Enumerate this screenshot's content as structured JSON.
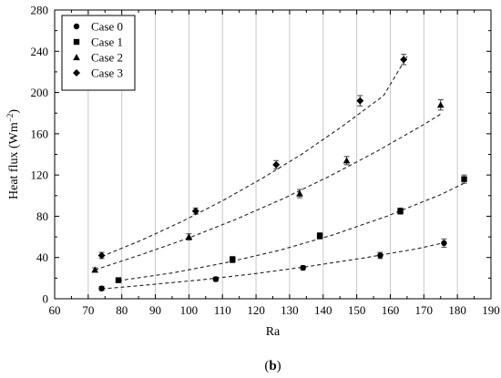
{
  "chart_data": {
    "type": "scatter",
    "title": "",
    "caption_parts": [
      "(",
      "b",
      ")"
    ],
    "xlabel": "Ra",
    "ylabel_parts": [
      "Heat flux (Wm",
      "−2",
      ")"
    ],
    "xlim": [
      60,
      190
    ],
    "ylim": [
      0,
      280
    ],
    "xticks": [
      60,
      70,
      80,
      90,
      100,
      110,
      120,
      130,
      140,
      150,
      160,
      170,
      180,
      190
    ],
    "yticks": [
      0,
      40,
      80,
      120,
      160,
      200,
      240,
      280
    ],
    "grid": {
      "vertical": true,
      "horizontal": false
    },
    "legend_position": "top-left",
    "fit_lines": "dashed",
    "series": [
      {
        "name": "Case 0",
        "marker": "circle",
        "points": [
          {
            "x": 74,
            "y": 10,
            "err": 2
          },
          {
            "x": 108,
            "y": 19,
            "err": 2
          },
          {
            "x": 134,
            "y": 30,
            "err": 2
          },
          {
            "x": 157,
            "y": 42,
            "err": 3
          },
          {
            "x": 176,
            "y": 54,
            "err": 4
          }
        ],
        "fit": {
          "x": [
            74,
            88,
            104,
            120,
            136,
            152,
            168,
            177
          ],
          "y": [
            9.5,
            13.5,
            18.5,
            24.5,
            31.5,
            39.5,
            48.5,
            55
          ]
        }
      },
      {
        "name": "Case 1",
        "marker": "square",
        "points": [
          {
            "x": 79,
            "y": 18,
            "err": 2
          },
          {
            "x": 113,
            "y": 38,
            "err": 3
          },
          {
            "x": 139,
            "y": 61,
            "err": 3
          },
          {
            "x": 163,
            "y": 85,
            "err": 3
          },
          {
            "x": 182,
            "y": 116,
            "err": 4
          }
        ],
        "fit": {
          "x": [
            79,
            95,
            111,
            127,
            143,
            159,
            175,
            182
          ],
          "y": [
            17.5,
            25,
            35,
            47,
            62,
            80,
            101,
            112
          ]
        }
      },
      {
        "name": "Case 2",
        "marker": "triangle",
        "points": [
          {
            "x": 72,
            "y": 28,
            "err": 2
          },
          {
            "x": 100,
            "y": 60,
            "err": 3
          },
          {
            "x": 133,
            "y": 102,
            "err": 4
          },
          {
            "x": 147,
            "y": 134,
            "err": 4
          },
          {
            "x": 175,
            "y": 188,
            "err": 5
          }
        ],
        "fit": {
          "x": [
            72,
            86,
            100,
            114,
            128,
            142,
            156,
            170,
            175
          ],
          "y": [
            28,
            43,
            59,
            77,
            97,
            119,
            143,
            169,
            179
          ]
        }
      },
      {
        "name": "Case 3",
        "marker": "diamond",
        "points": [
          {
            "x": 74,
            "y": 42,
            "err": 3
          },
          {
            "x": 102,
            "y": 85,
            "err": 3
          },
          {
            "x": 126,
            "y": 130,
            "err": 4
          },
          {
            "x": 151,
            "y": 192,
            "err": 5
          },
          {
            "x": 164,
            "y": 232,
            "err": 5
          }
        ],
        "fit": {
          "x": [
            74,
            86,
            98,
            110,
            122,
            134,
            146,
            158,
            165
          ],
          "y": [
            41,
            57,
            75,
            95,
            117,
            141,
            168,
            197,
            235
          ]
        }
      }
    ]
  }
}
